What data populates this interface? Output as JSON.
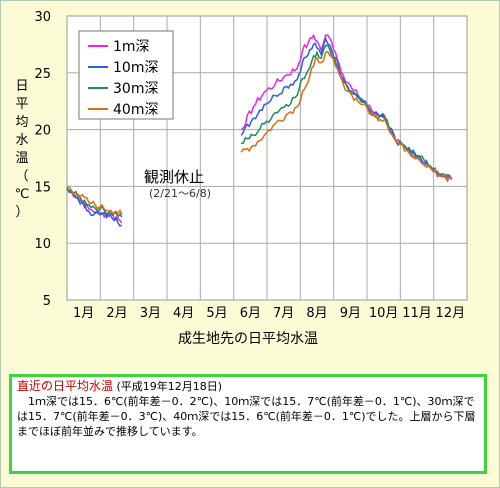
{
  "chart_data": {
    "type": "line",
    "xlabel": "成生地先の日平均水温",
    "ylabel_chars": [
      "日",
      "平",
      "均",
      "水",
      "温",
      "（",
      "℃",
      "）"
    ],
    "ylim": [
      5,
      30
    ],
    "yticks": [
      5,
      10,
      15,
      20,
      25,
      30
    ],
    "xlim": [
      0,
      365
    ],
    "month_labels": [
      "1月",
      "2月",
      "3月",
      "4月",
      "5月",
      "6月",
      "7月",
      "8月",
      "9月",
      "10月",
      "11月",
      "12月"
    ],
    "annotation": {
      "title": "観測休止",
      "range": "(2/21～6/8)"
    },
    "legend_position": "top-left",
    "series": [
      {
        "name": "1m深",
        "color": "#ee22ee",
        "points": [
          [
            0,
            14.8
          ],
          [
            10,
            14.0
          ],
          [
            20,
            13.0
          ],
          [
            30,
            12.6
          ],
          [
            40,
            12.5
          ],
          [
            45,
            12.3
          ],
          [
            50,
            11.8
          ],
          [
            159,
            20.0
          ],
          [
            170,
            22.0
          ],
          [
            180,
            23.3
          ],
          [
            190,
            24.0
          ],
          [
            200,
            24.8
          ],
          [
            210,
            25.4
          ],
          [
            215,
            27.0
          ],
          [
            220,
            27.6
          ],
          [
            225,
            28.3
          ],
          [
            228,
            27.8
          ],
          [
            232,
            27.0
          ],
          [
            236,
            28.3
          ],
          [
            240,
            28.0
          ],
          [
            245,
            26.8
          ],
          [
            252,
            24.8
          ],
          [
            260,
            23.6
          ],
          [
            270,
            22.6
          ],
          [
            280,
            21.5
          ],
          [
            290,
            21.2
          ],
          [
            300,
            19.0
          ],
          [
            310,
            18.2
          ],
          [
            320,
            17.6
          ],
          [
            330,
            16.8
          ],
          [
            340,
            16.0
          ],
          [
            351,
            15.6
          ]
        ]
      },
      {
        "name": "10m深",
        "color": "#2a5ee6",
        "points": [
          [
            0,
            14.8
          ],
          [
            10,
            13.9
          ],
          [
            20,
            12.8
          ],
          [
            30,
            12.5
          ],
          [
            40,
            12.4
          ],
          [
            45,
            12.2
          ],
          [
            50,
            11.6
          ],
          [
            159,
            19.5
          ],
          [
            170,
            21.0
          ],
          [
            180,
            22.2
          ],
          [
            190,
            23.0
          ],
          [
            200,
            23.8
          ],
          [
            210,
            24.4
          ],
          [
            215,
            26.0
          ],
          [
            220,
            26.6
          ],
          [
            225,
            27.5
          ],
          [
            228,
            27.2
          ],
          [
            232,
            26.6
          ],
          [
            236,
            28.0
          ],
          [
            240,
            27.4
          ],
          [
            245,
            26.3
          ],
          [
            252,
            24.5
          ],
          [
            260,
            23.4
          ],
          [
            270,
            22.5
          ],
          [
            280,
            21.4
          ],
          [
            290,
            21.0
          ],
          [
            300,
            19.0
          ],
          [
            310,
            18.3
          ],
          [
            320,
            17.6
          ],
          [
            330,
            16.8
          ],
          [
            340,
            16.0
          ],
          [
            351,
            15.7
          ]
        ]
      },
      {
        "name": "30m深",
        "color": "#1f8c5a",
        "points": [
          [
            0,
            14.9
          ],
          [
            10,
            14.1
          ],
          [
            20,
            13.4
          ],
          [
            30,
            13.0
          ],
          [
            40,
            12.7
          ],
          [
            45,
            12.6
          ],
          [
            50,
            12.3
          ],
          [
            159,
            18.8
          ],
          [
            170,
            19.5
          ],
          [
            180,
            20.5
          ],
          [
            190,
            21.5
          ],
          [
            200,
            22.2
          ],
          [
            210,
            23.0
          ],
          [
            215,
            24.5
          ],
          [
            220,
            25.2
          ],
          [
            225,
            26.5
          ],
          [
            228,
            26.8
          ],
          [
            232,
            26.3
          ],
          [
            236,
            27.4
          ],
          [
            240,
            27.0
          ],
          [
            245,
            26.0
          ],
          [
            252,
            24.2
          ],
          [
            260,
            23.2
          ],
          [
            270,
            22.4
          ],
          [
            280,
            21.3
          ],
          [
            290,
            21.0
          ],
          [
            300,
            19.0
          ],
          [
            310,
            18.3
          ],
          [
            320,
            17.7
          ],
          [
            330,
            16.9
          ],
          [
            340,
            16.0
          ],
          [
            351,
            15.7
          ]
        ]
      },
      {
        "name": "40m深",
        "color": "#e06b10",
        "points": [
          [
            0,
            15.0
          ],
          [
            10,
            14.3
          ],
          [
            20,
            13.6
          ],
          [
            30,
            13.2
          ],
          [
            40,
            12.9
          ],
          [
            45,
            12.8
          ],
          [
            50,
            12.5
          ],
          [
            159,
            18.0
          ],
          [
            170,
            18.6
          ],
          [
            180,
            19.5
          ],
          [
            190,
            20.5
          ],
          [
            200,
            21.3
          ],
          [
            210,
            22.0
          ],
          [
            215,
            23.4
          ],
          [
            220,
            24.2
          ],
          [
            225,
            25.6
          ],
          [
            228,
            26.3
          ],
          [
            232,
            25.9
          ],
          [
            236,
            26.8
          ],
          [
            240,
            26.5
          ],
          [
            245,
            25.6
          ],
          [
            252,
            24.0
          ],
          [
            260,
            23.0
          ],
          [
            270,
            22.2
          ],
          [
            280,
            21.2
          ],
          [
            290,
            20.9
          ],
          [
            300,
            19.0
          ],
          [
            310,
            18.2
          ],
          [
            320,
            17.5
          ],
          [
            330,
            16.8
          ],
          [
            340,
            15.9
          ],
          [
            351,
            15.6
          ]
        ]
      }
    ]
  },
  "notice": {
    "heading": "直近の日平均水温",
    "date": "(平成19年12月18日)",
    "body": "1ｍ深では15．6℃(前年差－0．2℃)、10ｍ深では15．7℃(前年差－0．1℃)、30ｍ深では15．7℃(前年差－0．3℃)、40ｍ深では15．6℃(前年差－0．1℃)でした。上層から下層までほぼ前年並みで推移しています。"
  }
}
